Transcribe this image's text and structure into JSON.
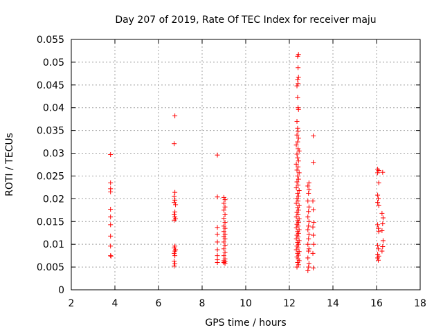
{
  "chart_data": {
    "type": "scatter",
    "title": "Day 207 of 2019, Rate Of TEC Index for receiver maju",
    "xlabel": "GPS time / hours",
    "ylabel": "ROTI / TECUs",
    "xlim": [
      2,
      18
    ],
    "ylim": [
      0,
      0.055
    ],
    "x_ticks": [
      2,
      4,
      6,
      8,
      10,
      12,
      14,
      16,
      18
    ],
    "y_ticks": [
      0,
      0.005,
      0.01,
      0.015,
      0.02,
      0.025,
      0.03,
      0.035,
      0.04,
      0.045,
      0.05,
      0.055
    ],
    "x_tick_labels": [
      "2",
      "4",
      "6",
      "8",
      "10",
      "12",
      "14",
      "16",
      "18"
    ],
    "y_tick_labels": [
      "0",
      "0.005",
      "0.01",
      "0.015",
      "0.02",
      "0.025",
      "0.03",
      "0.035",
      "0.04",
      "0.045",
      "0.05",
      "0.055"
    ],
    "grid": true,
    "marker": "+",
    "color": "#ff0000",
    "series": [
      {
        "name": "ROTI",
        "points": [
          [
            3.8,
            0.0297
          ],
          [
            3.8,
            0.0235
          ],
          [
            3.8,
            0.0222
          ],
          [
            3.8,
            0.0215
          ],
          [
            3.8,
            0.0177
          ],
          [
            3.8,
            0.016
          ],
          [
            3.8,
            0.0143
          ],
          [
            3.8,
            0.0118
          ],
          [
            3.8,
            0.0096
          ],
          [
            3.8,
            0.0075
          ],
          [
            3.82,
            0.0074
          ],
          [
            6.75,
            0.0382
          ],
          [
            6.72,
            0.0321
          ],
          [
            6.75,
            0.0214
          ],
          [
            6.72,
            0.0205
          ],
          [
            6.75,
            0.0197
          ],
          [
            6.72,
            0.0192
          ],
          [
            6.78,
            0.0187
          ],
          [
            6.75,
            0.0171
          ],
          [
            6.72,
            0.0165
          ],
          [
            6.75,
            0.016
          ],
          [
            6.78,
            0.0156
          ],
          [
            6.72,
            0.0153
          ],
          [
            6.75,
            0.0096
          ],
          [
            6.72,
            0.0092
          ],
          [
            6.78,
            0.0088
          ],
          [
            6.75,
            0.0085
          ],
          [
            6.72,
            0.008
          ],
          [
            6.75,
            0.0075
          ],
          [
            6.72,
            0.0063
          ],
          [
            6.75,
            0.0057
          ],
          [
            6.72,
            0.0052
          ],
          [
            8.7,
            0.0296
          ],
          [
            8.7,
            0.0204
          ],
          [
            8.7,
            0.0137
          ],
          [
            8.7,
            0.0122
          ],
          [
            8.7,
            0.0105
          ],
          [
            8.7,
            0.0088
          ],
          [
            8.7,
            0.0075
          ],
          [
            8.7,
            0.0066
          ],
          [
            8.7,
            0.006
          ],
          [
            9.0,
            0.0203
          ],
          [
            9.05,
            0.0198
          ],
          [
            9.0,
            0.019
          ],
          [
            9.05,
            0.0182
          ],
          [
            9.0,
            0.0175
          ],
          [
            9.05,
            0.0165
          ],
          [
            9.0,
            0.0157
          ],
          [
            9.05,
            0.0148
          ],
          [
            9.0,
            0.014
          ],
          [
            9.05,
            0.0135
          ],
          [
            9.0,
            0.0128
          ],
          [
            9.05,
            0.0122
          ],
          [
            9.0,
            0.0117
          ],
          [
            9.05,
            0.0112
          ],
          [
            9.0,
            0.0105
          ],
          [
            9.05,
            0.0098
          ],
          [
            9.0,
            0.009
          ],
          [
            9.05,
            0.0082
          ],
          [
            9.0,
            0.0075
          ],
          [
            9.05,
            0.0068
          ],
          [
            9.0,
            0.0064
          ],
          [
            9.05,
            0.0062
          ],
          [
            9.0,
            0.006
          ],
          [
            9.05,
            0.0058
          ],
          [
            12.42,
            0.0517
          ],
          [
            12.38,
            0.0513
          ],
          [
            12.4,
            0.0488
          ],
          [
            12.42,
            0.0467
          ],
          [
            12.38,
            0.0462
          ],
          [
            12.4,
            0.0453
          ],
          [
            12.35,
            0.0448
          ],
          [
            12.38,
            0.0423
          ],
          [
            12.4,
            0.04
          ],
          [
            12.42,
            0.0396
          ],
          [
            12.35,
            0.037
          ],
          [
            12.38,
            0.0355
          ],
          [
            12.4,
            0.0348
          ],
          [
            12.35,
            0.034
          ],
          [
            12.42,
            0.0333
          ],
          [
            12.38,
            0.0325
          ],
          [
            12.32,
            0.0318
          ],
          [
            12.4,
            0.031
          ],
          [
            12.45,
            0.0305
          ],
          [
            12.35,
            0.0298
          ],
          [
            12.38,
            0.029
          ],
          [
            12.42,
            0.0283
          ],
          [
            12.32,
            0.0276
          ],
          [
            12.4,
            0.027
          ],
          [
            12.35,
            0.0263
          ],
          [
            12.45,
            0.0257
          ],
          [
            12.38,
            0.025
          ],
          [
            12.42,
            0.0243
          ],
          [
            12.35,
            0.0237
          ],
          [
            12.4,
            0.023
          ],
          [
            12.32,
            0.0224
          ],
          [
            12.45,
            0.0218
          ],
          [
            12.38,
            0.0212
          ],
          [
            12.42,
            0.0206
          ],
          [
            12.35,
            0.02
          ],
          [
            12.4,
            0.0195
          ],
          [
            12.32,
            0.019
          ],
          [
            12.45,
            0.0185
          ],
          [
            12.38,
            0.018
          ],
          [
            12.42,
            0.0175
          ],
          [
            12.35,
            0.017
          ],
          [
            12.4,
            0.0165
          ],
          [
            12.32,
            0.016
          ],
          [
            12.45,
            0.0156
          ],
          [
            12.38,
            0.0152
          ],
          [
            12.42,
            0.0148
          ],
          [
            12.35,
            0.0144
          ],
          [
            12.4,
            0.014
          ],
          [
            12.32,
            0.0136
          ],
          [
            12.45,
            0.0132
          ],
          [
            12.38,
            0.0128
          ],
          [
            12.42,
            0.0124
          ],
          [
            12.35,
            0.012
          ],
          [
            12.4,
            0.0116
          ],
          [
            12.32,
            0.0112
          ],
          [
            12.45,
            0.0108
          ],
          [
            12.38,
            0.0104
          ],
          [
            12.42,
            0.01
          ],
          [
            12.35,
            0.0096
          ],
          [
            12.4,
            0.0092
          ],
          [
            12.32,
            0.0088
          ],
          [
            12.45,
            0.0084
          ],
          [
            12.38,
            0.008
          ],
          [
            12.42,
            0.0076
          ],
          [
            12.35,
            0.0072
          ],
          [
            12.4,
            0.0068
          ],
          [
            12.45,
            0.0064
          ],
          [
            12.38,
            0.006
          ],
          [
            12.42,
            0.0055
          ],
          [
            12.35,
            0.005
          ],
          [
            12.9,
            0.0235
          ],
          [
            12.85,
            0.0228
          ],
          [
            12.9,
            0.022
          ],
          [
            12.88,
            0.0212
          ],
          [
            12.85,
            0.0195
          ],
          [
            12.9,
            0.0182
          ],
          [
            12.88,
            0.0172
          ],
          [
            12.85,
            0.016
          ],
          [
            12.9,
            0.015
          ],
          [
            12.88,
            0.014
          ],
          [
            12.85,
            0.0132
          ],
          [
            12.9,
            0.0122
          ],
          [
            12.88,
            0.0112
          ],
          [
            12.85,
            0.01
          ],
          [
            12.9,
            0.009
          ],
          [
            12.88,
            0.0085
          ],
          [
            12.85,
            0.007
          ],
          [
            12.9,
            0.0058
          ],
          [
            12.88,
            0.005
          ],
          [
            12.85,
            0.0042
          ],
          [
            13.1,
            0.0338
          ],
          [
            13.1,
            0.028
          ],
          [
            13.08,
            0.0195
          ],
          [
            13.1,
            0.0176
          ],
          [
            13.12,
            0.0148
          ],
          [
            13.08,
            0.0138
          ],
          [
            13.1,
            0.012
          ],
          [
            13.12,
            0.01
          ],
          [
            13.08,
            0.008
          ],
          [
            13.1,
            0.0048
          ],
          [
            16.05,
            0.0265
          ],
          [
            16.1,
            0.0262
          ],
          [
            16.05,
            0.0257
          ],
          [
            16.1,
            0.0235
          ],
          [
            16.05,
            0.0208
          ],
          [
            16.08,
            0.02
          ],
          [
            16.05,
            0.0192
          ],
          [
            16.1,
            0.0185
          ],
          [
            16.05,
            0.0143
          ],
          [
            16.08,
            0.0135
          ],
          [
            16.1,
            0.0128
          ],
          [
            16.05,
            0.0098
          ],
          [
            16.08,
            0.009
          ],
          [
            16.05,
            0.0078
          ],
          [
            16.1,
            0.0074
          ],
          [
            16.05,
            0.007
          ],
          [
            16.08,
            0.0065
          ],
          [
            16.28,
            0.0258
          ],
          [
            16.25,
            0.0168
          ],
          [
            16.3,
            0.0158
          ],
          [
            16.28,
            0.0145
          ],
          [
            16.25,
            0.013
          ],
          [
            16.3,
            0.0108
          ],
          [
            16.28,
            0.0095
          ],
          [
            16.25,
            0.0085
          ]
        ]
      }
    ]
  }
}
